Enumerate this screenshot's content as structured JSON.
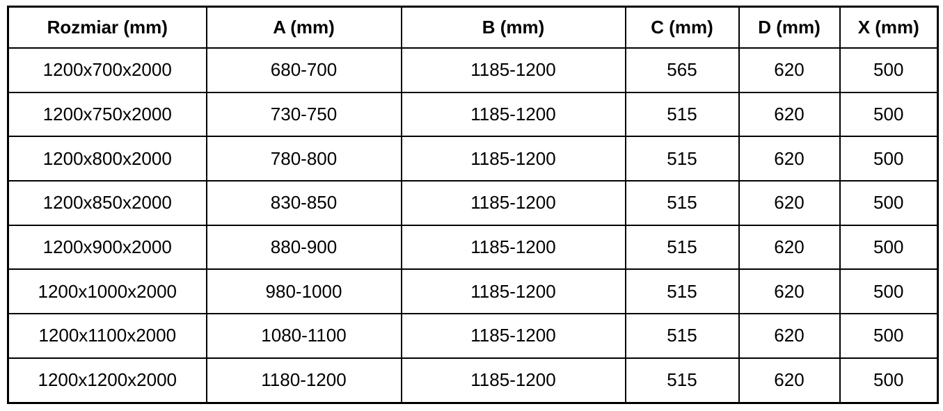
{
  "chart_data": {
    "type": "table",
    "columns": [
      "Rozmiar (mm)",
      "A (mm)",
      "B (mm)",
      "C (mm)",
      "D (mm)",
      "X (mm)"
    ],
    "rows": [
      [
        "1200x700x2000",
        "680-700",
        "1185-1200",
        "565",
        "620",
        "500"
      ],
      [
        "1200x750x2000",
        "730-750",
        "1185-1200",
        "515",
        "620",
        "500"
      ],
      [
        "1200x800x2000",
        "780-800",
        "1185-1200",
        "515",
        "620",
        "500"
      ],
      [
        "1200x850x2000",
        "830-850",
        "1185-1200",
        "515",
        "620",
        "500"
      ],
      [
        "1200x900x2000",
        "880-900",
        "1185-1200",
        "515",
        "620",
        "500"
      ],
      [
        "1200x1000x2000",
        "980-1000",
        "1185-1200",
        "515",
        "620",
        "500"
      ],
      [
        "1200x1100x2000",
        "1080-1100",
        "1185-1200",
        "515",
        "620",
        "500"
      ],
      [
        "1200x1200x2000",
        "1180-1200",
        "1185-1200",
        "515",
        "620",
        "500"
      ]
    ]
  },
  "colors": {
    "border": "#000000",
    "background": "#ffffff",
    "text": "#000000"
  }
}
